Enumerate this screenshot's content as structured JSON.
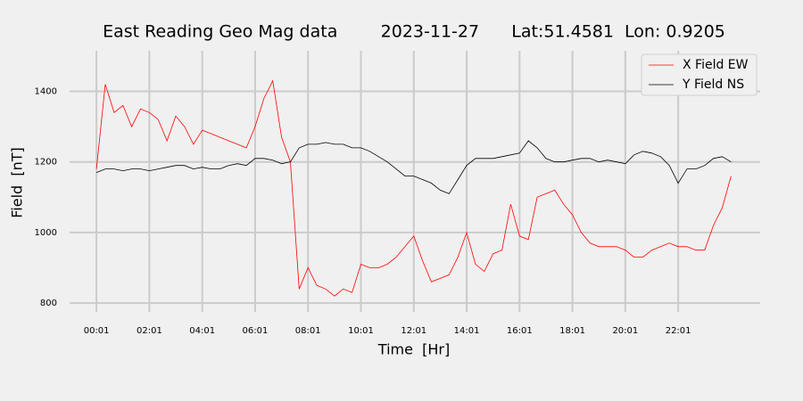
{
  "chart_data": {
    "type": "line",
    "title": "East Reading Geo Mag data        2023-11-27      Lat:51.4581  Lon: 0.9205",
    "x_label": "Time  [Hr]",
    "y_label": "Field  [nT]",
    "x": [
      1,
      21,
      41,
      61,
      81,
      101,
      121,
      141,
      161,
      181,
      201,
      221,
      241,
      261,
      281,
      301,
      321,
      341,
      361,
      381,
      401,
      421,
      441,
      461,
      481,
      501,
      521,
      541,
      561,
      581,
      601,
      621,
      641,
      661,
      681,
      701,
      721,
      741,
      761,
      781,
      801,
      821,
      841,
      861,
      881,
      901,
      921,
      941,
      961,
      981,
      1001,
      1021,
      1041,
      1061,
      1081,
      1101,
      1121,
      1141,
      1161,
      1181,
      1201,
      1221,
      1241,
      1261,
      1281,
      1301,
      1321,
      1341,
      1361,
      1381,
      1401,
      1421,
      1441
    ],
    "series": [
      {
        "name": "X Field EW",
        "color": "#ff0000",
        "values": [
          1180,
          1420,
          1340,
          1360,
          1300,
          1350,
          1340,
          1320,
          1260,
          1330,
          1300,
          1250,
          1290,
          1280,
          1270,
          1260,
          1250,
          1240,
          1300,
          1380,
          1430,
          1270,
          1200,
          840,
          900,
          850,
          840,
          820,
          840,
          830,
          910,
          900,
          900,
          910,
          930,
          960,
          990,
          920,
          860,
          870,
          880,
          930,
          1000,
          910,
          890,
          940,
          950,
          1080,
          990,
          980,
          1100,
          1110,
          1120,
          1080,
          1050,
          1000,
          970,
          960,
          960,
          960,
          950,
          930,
          930,
          950,
          960,
          970,
          960,
          960,
          950,
          950,
          1020,
          1070,
          1160
        ]
      },
      {
        "name": "Y Field NS",
        "color": "#000000",
        "values": [
          1170,
          1180,
          1180,
          1175,
          1180,
          1180,
          1175,
          1180,
          1185,
          1190,
          1190,
          1180,
          1185,
          1180,
          1180,
          1190,
          1195,
          1190,
          1210,
          1210,
          1205,
          1195,
          1200,
          1240,
          1250,
          1250,
          1255,
          1250,
          1250,
          1240,
          1240,
          1230,
          1215,
          1200,
          1180,
          1160,
          1160,
          1150,
          1140,
          1120,
          1110,
          1150,
          1190,
          1210,
          1210,
          1210,
          1215,
          1220,
          1225,
          1260,
          1240,
          1210,
          1200,
          1200,
          1205,
          1210,
          1210,
          1200,
          1205,
          1200,
          1195,
          1220,
          1230,
          1225,
          1215,
          1190,
          1140,
          1180,
          1180,
          1190,
          1210,
          1215,
          1200
        ]
      }
    ],
    "xlim": [
      -60,
      1507
    ],
    "ylim": [
      775,
      1515
    ],
    "xticks": [
      {
        "value": 1,
        "label": "00:01"
      },
      {
        "value": 121,
        "label": "02:01"
      },
      {
        "value": 241,
        "label": "04:01"
      },
      {
        "value": 361,
        "label": "06:01"
      },
      {
        "value": 481,
        "label": "08:01"
      },
      {
        "value": 601,
        "label": "10:01"
      },
      {
        "value": 721,
        "label": "12:01"
      },
      {
        "value": 841,
        "label": "14:01"
      },
      {
        "value": 961,
        "label": "16:01"
      },
      {
        "value": 1081,
        "label": "18:01"
      },
      {
        "value": 1201,
        "label": "20:01"
      },
      {
        "value": 1321,
        "label": "22:01"
      }
    ],
    "yticks": [
      800,
      1000,
      1200,
      1400
    ],
    "grid": true,
    "legend": "upper right"
  }
}
